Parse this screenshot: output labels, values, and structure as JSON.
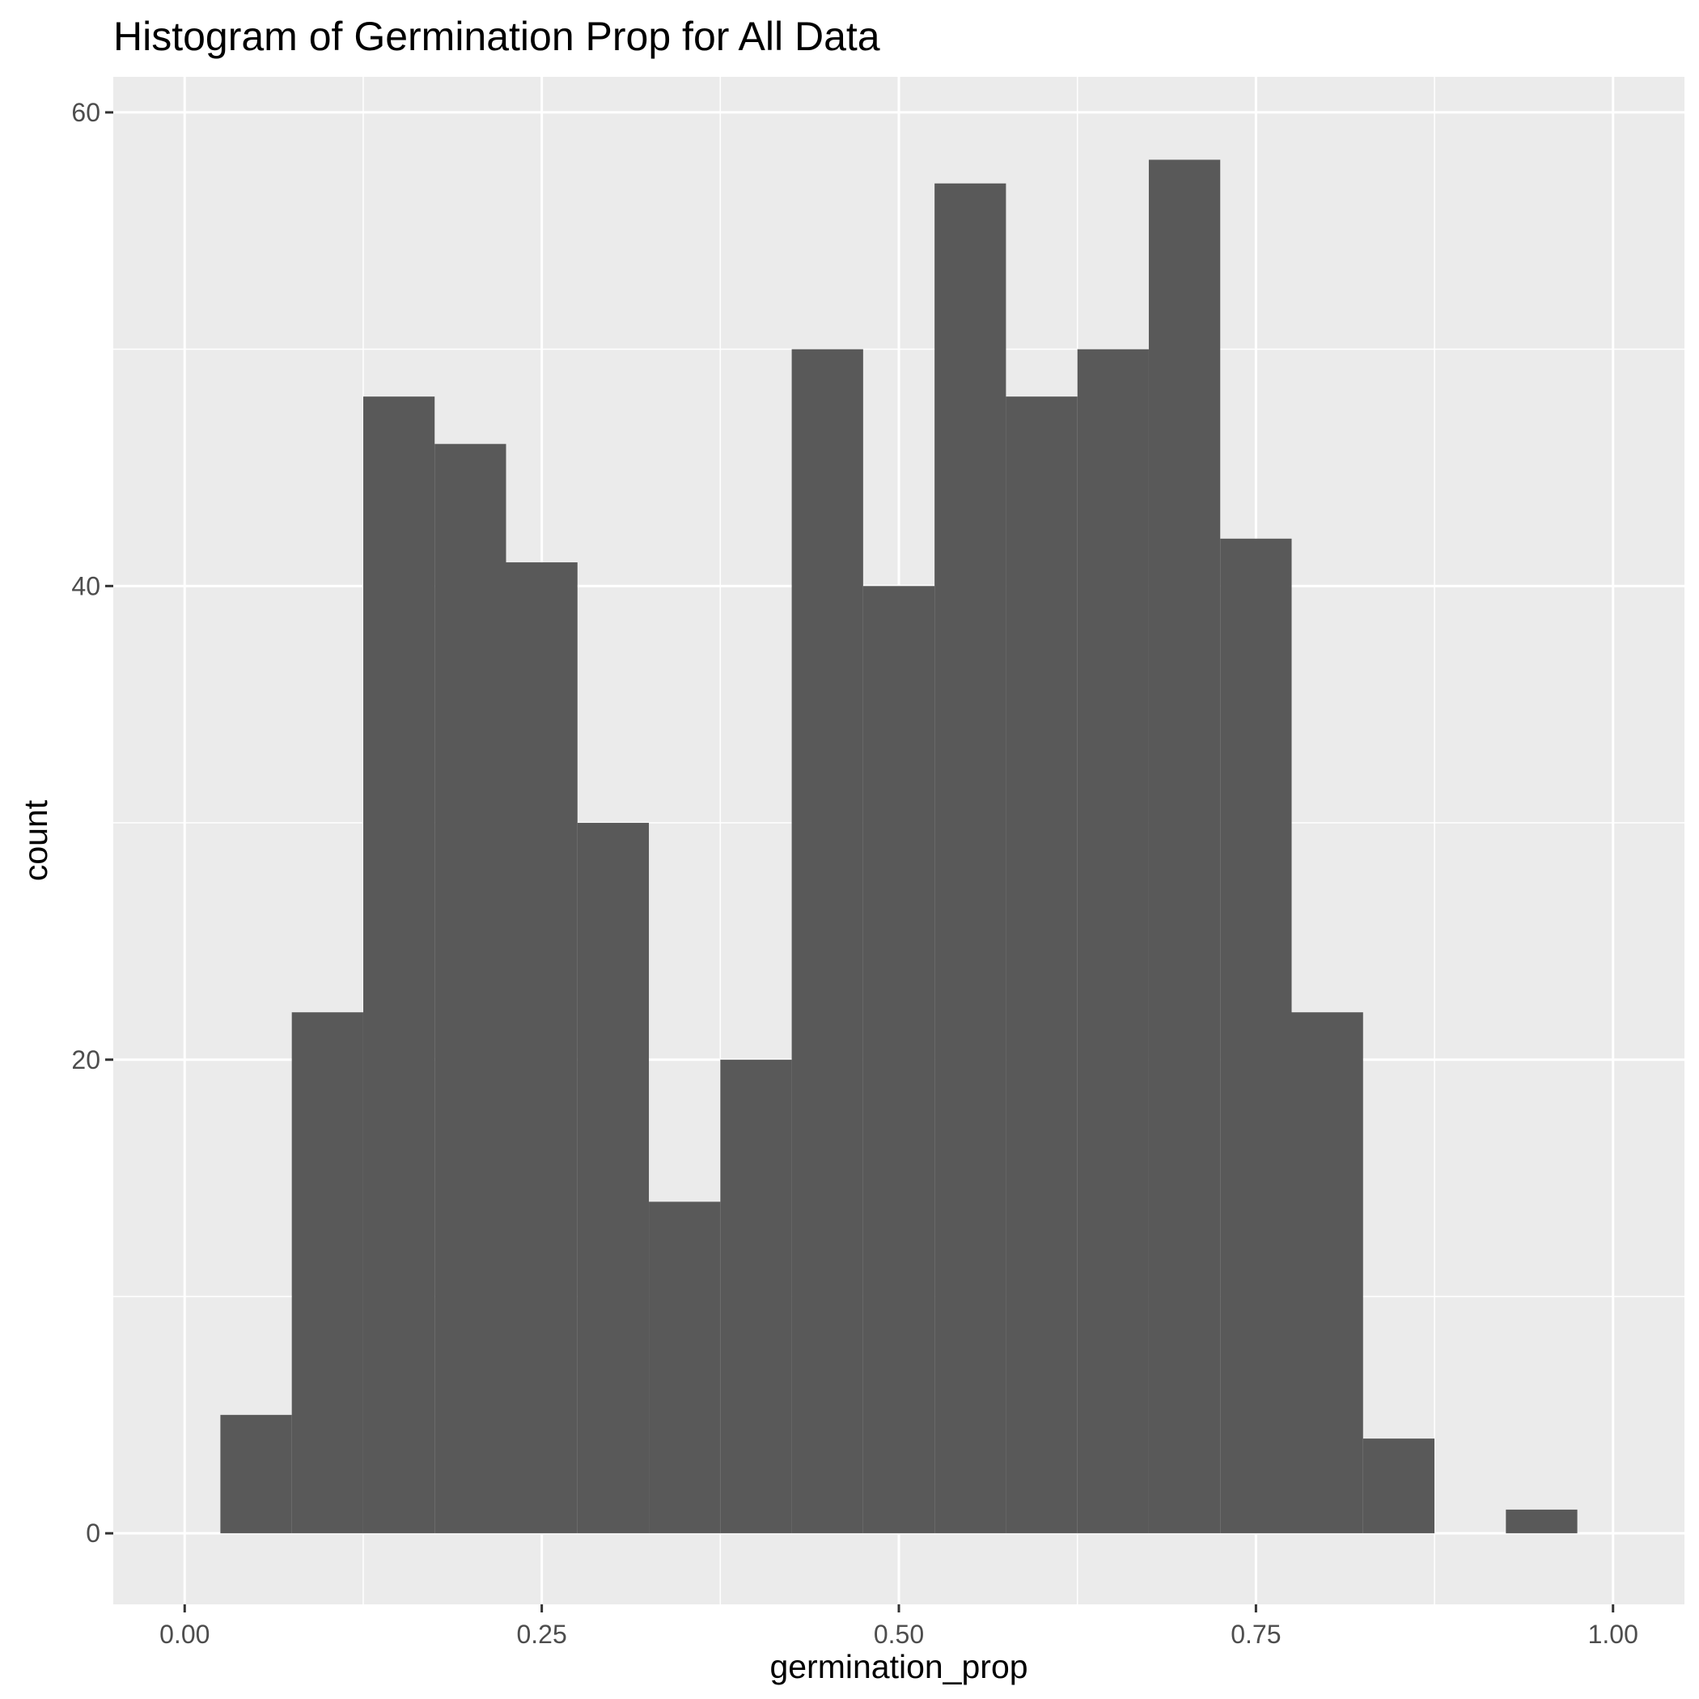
{
  "chart_data": {
    "type": "bar",
    "title": "Histogram of Germination Prop for All Data",
    "xlabel": "germination_prop",
    "ylabel": "count",
    "xlim": [
      -0.05,
      1.05
    ],
    "ylim": [
      -3,
      61.5
    ],
    "x_ticks": [
      0.0,
      0.25,
      0.5,
      0.75,
      1.0
    ],
    "x_tick_labels": [
      "0.00",
      "0.25",
      "0.50",
      "0.75",
      "1.00"
    ],
    "x_minor_ticks": [
      0.125,
      0.375,
      0.625,
      0.875
    ],
    "y_ticks": [
      0,
      20,
      40,
      60
    ],
    "y_tick_labels": [
      "0",
      "20",
      "40",
      "60"
    ],
    "y_minor_ticks": [
      10,
      30,
      50
    ],
    "grid": true,
    "bin_width": 0.05,
    "bin_centers": [
      0.05,
      0.1,
      0.15,
      0.2,
      0.25,
      0.3,
      0.35,
      0.4,
      0.45,
      0.5,
      0.55,
      0.6,
      0.65,
      0.7,
      0.75,
      0.8,
      0.85,
      0.9,
      0.95
    ],
    "values": [
      5,
      22,
      48,
      46,
      41,
      30,
      14,
      20,
      50,
      40,
      57,
      48,
      50,
      58,
      42,
      22,
      4,
      0,
      1
    ],
    "colors": {
      "bar": "#595959",
      "panel": "#ebebeb",
      "grid": "#ffffff",
      "tick": "#333333"
    }
  }
}
